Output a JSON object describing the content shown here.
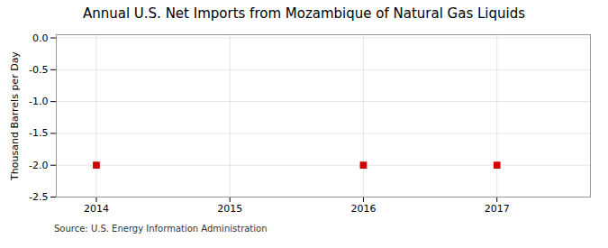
{
  "chart_data": {
    "type": "scatter",
    "title": "Annual U.S. Net Imports from Mozambique of Natural Gas Liquids",
    "ylabel": "Thousand Barrels per Day",
    "source": "Source: U.S. Energy Information Administration",
    "x": [
      2014,
      2016,
      2017
    ],
    "values": [
      -2.0,
      -2.0,
      -2.0
    ],
    "color": "#cc0000",
    "marker": "square",
    "xlim": [
      2013.7,
      2017.7
    ],
    "xticks": [
      2014,
      2015,
      2016,
      2017
    ],
    "ylim": [
      -2.5,
      0.05
    ],
    "yticks": [
      {
        "value": 0,
        "label": "0.0"
      },
      -0.5,
      {
        "value": -1,
        "label": "-1.0"
      },
      -1.5,
      {
        "value": -2,
        "label": "-2.0"
      },
      -2.5
    ],
    "grid": true
  }
}
